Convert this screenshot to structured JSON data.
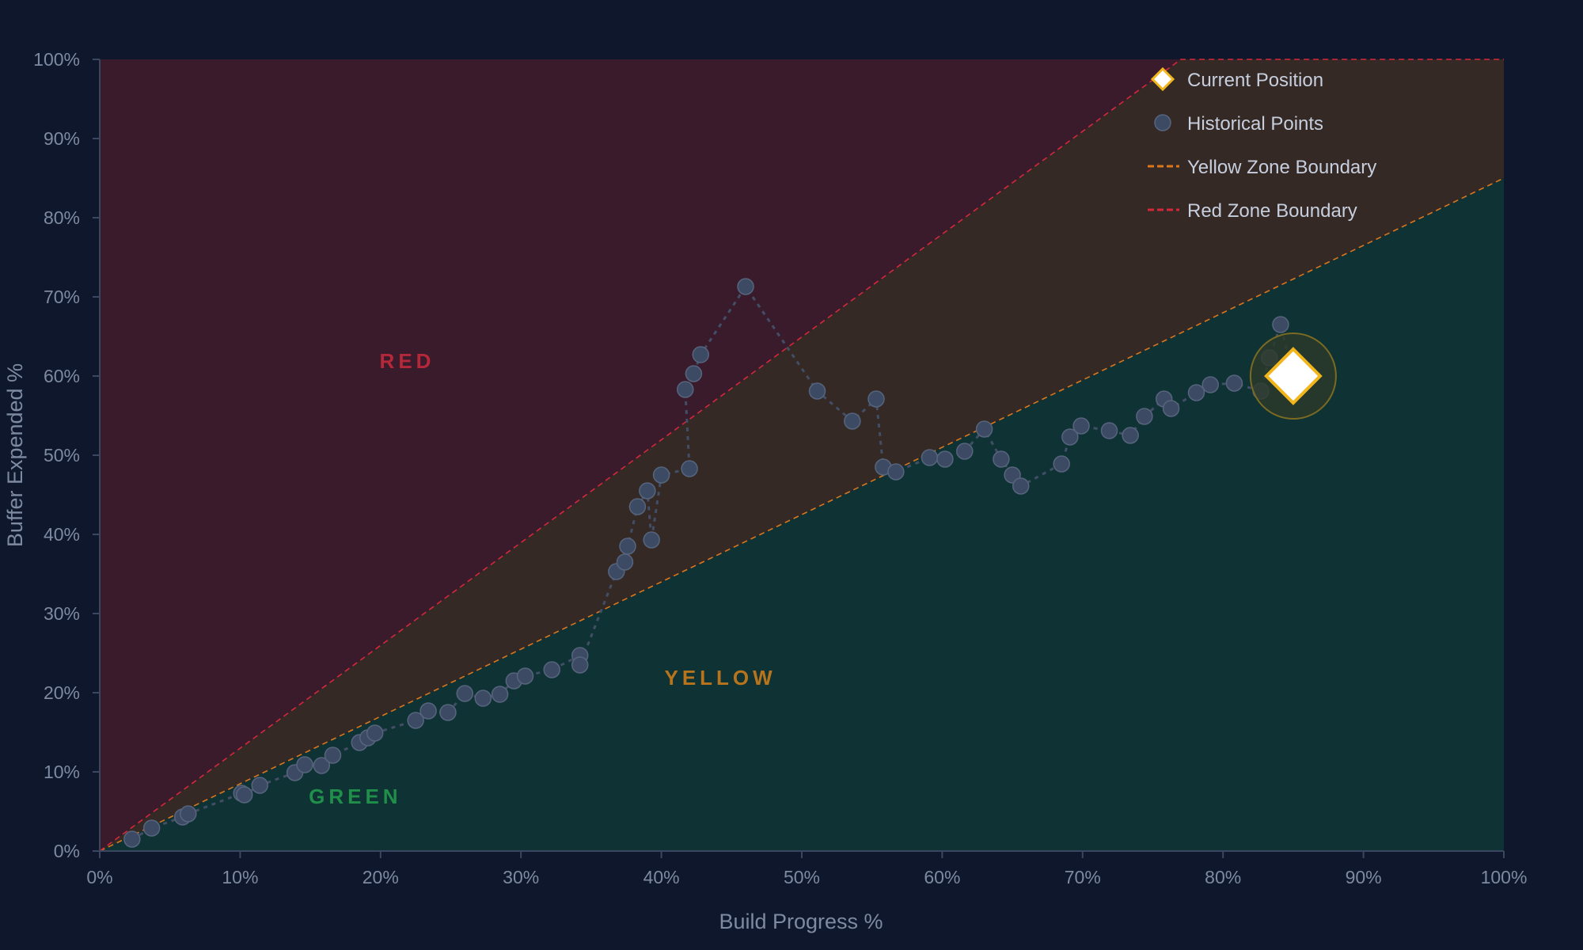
{
  "chart_data": {
    "type": "scatter",
    "title": "",
    "xlabel": "Build Progress %",
    "ylabel": "Buffer Expended %",
    "xlim": [
      0,
      100
    ],
    "ylim": [
      0,
      100
    ],
    "x_ticks": [
      "0%",
      "10%",
      "20%",
      "30%",
      "40%",
      "50%",
      "60%",
      "70%",
      "80%",
      "90%",
      "100%"
    ],
    "y_ticks": [
      "0%",
      "10%",
      "20%",
      "30%",
      "40%",
      "50%",
      "60%",
      "70%",
      "80%",
      "90%",
      "100%"
    ],
    "grid": false,
    "legend_position": "top-right",
    "zones": [
      {
        "label": "RED",
        "label_x": 21.9,
        "label_y": 61,
        "color": "#b5283a"
      },
      {
        "label": "YELLOW",
        "label_x": 44.2,
        "label_y": 21,
        "color": "#b8741c"
      },
      {
        "label": "GREEN",
        "label_x": 18.2,
        "label_y": 6,
        "color": "#1f8f4a"
      }
    ],
    "boundaries": [
      {
        "name": "Yellow Zone Boundary",
        "color": "#d9761e",
        "points": [
          [
            0,
            0
          ],
          [
            100,
            85
          ]
        ]
      },
      {
        "name": "Red Zone Boundary",
        "color": "#d3283b",
        "points": [
          [
            0,
            0
          ],
          [
            77,
            100
          ],
          [
            100,
            100
          ]
        ]
      }
    ],
    "series": [
      {
        "name": "Historical Points",
        "color": "#3c4a63",
        "points": [
          [
            2.3,
            1.5
          ],
          [
            3.7,
            2.9
          ],
          [
            5.9,
            4.3
          ],
          [
            6.3,
            4.7
          ],
          [
            10.1,
            7.3
          ],
          [
            10.3,
            7.1
          ],
          [
            11.4,
            8.3
          ],
          [
            13.9,
            9.9
          ],
          [
            14.6,
            10.9
          ],
          [
            15.8,
            10.8
          ],
          [
            16.6,
            12.1
          ],
          [
            18.5,
            13.7
          ],
          [
            19.1,
            14.3
          ],
          [
            19.6,
            14.9
          ],
          [
            22.5,
            16.5
          ],
          [
            23.4,
            17.7
          ],
          [
            24.8,
            17.5
          ],
          [
            26.0,
            19.9
          ],
          [
            27.3,
            19.3
          ],
          [
            28.5,
            19.8
          ],
          [
            29.5,
            21.5
          ],
          [
            30.3,
            22.1
          ],
          [
            32.2,
            22.9
          ],
          [
            34.2,
            24.7
          ],
          [
            34.2,
            23.5
          ],
          [
            36.8,
            35.3
          ],
          [
            37.4,
            36.5
          ],
          [
            37.6,
            38.5
          ],
          [
            38.3,
            43.5
          ],
          [
            39.0,
            45.5
          ],
          [
            39.3,
            39.3
          ],
          [
            40.0,
            47.5
          ],
          [
            42.0,
            48.3
          ],
          [
            41.7,
            58.3
          ],
          [
            42.3,
            60.3
          ],
          [
            42.8,
            62.7
          ],
          [
            46.0,
            71.3
          ],
          [
            51.1,
            58.1
          ],
          [
            53.6,
            54.3
          ],
          [
            55.3,
            57.1
          ],
          [
            55.8,
            48.5
          ],
          [
            56.7,
            47.9
          ],
          [
            59.1,
            49.7
          ],
          [
            60.2,
            49.5
          ],
          [
            61.6,
            50.5
          ],
          [
            63.0,
            53.3
          ],
          [
            64.2,
            49.5
          ],
          [
            65.0,
            47.5
          ],
          [
            65.6,
            46.1
          ],
          [
            68.5,
            48.9
          ],
          [
            69.1,
            52.3
          ],
          [
            69.9,
            53.7
          ],
          [
            71.9,
            53.1
          ],
          [
            73.4,
            52.5
          ],
          [
            74.4,
            54.9
          ],
          [
            75.8,
            57.1
          ],
          [
            76.3,
            55.9
          ],
          [
            78.1,
            57.9
          ],
          [
            79.1,
            58.9
          ],
          [
            80.8,
            59.1
          ],
          [
            82.7,
            58.1
          ],
          [
            83.3,
            62.3
          ],
          [
            84.1,
            66.5
          ]
        ]
      },
      {
        "name": "Current Position",
        "color": "#f2b51c",
        "points": [
          [
            85,
            60
          ]
        ]
      }
    ],
    "legend": [
      {
        "label": "Current Position",
        "kind": "diamond"
      },
      {
        "label": "Historical Points",
        "kind": "dot"
      },
      {
        "label": "Yellow Zone Boundary",
        "kind": "dash-yellow"
      },
      {
        "label": "Red Zone Boundary",
        "kind": "dash-red"
      }
    ]
  }
}
